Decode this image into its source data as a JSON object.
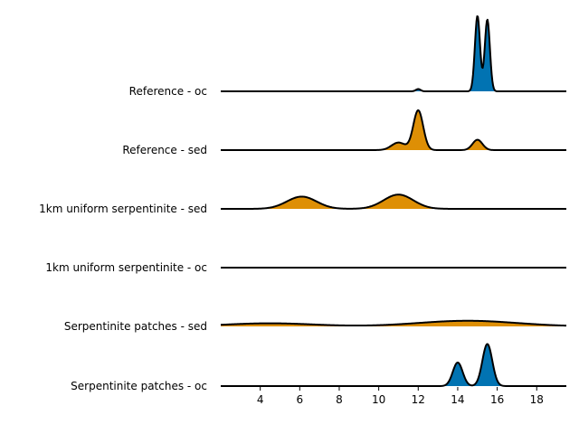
{
  "chart_data": {
    "type": "area",
    "subtype": "ridgeline",
    "title": "",
    "xlabel": "",
    "ylabel": "",
    "xlim": [
      2,
      19.5
    ],
    "xticks": [
      4,
      6,
      8,
      10,
      12,
      14,
      16,
      18
    ],
    "xtick_labels": [
      "4",
      "6",
      "8",
      "10",
      "12",
      "14",
      "16",
      "18"
    ],
    "grid": false,
    "colors": {
      "oc": "#0173b2",
      "sed": "#de8f05",
      "outline": "#000000"
    },
    "series": [
      {
        "name": "Reference - oc",
        "color": "#0173b2",
        "peak_height": 1.0,
        "components": [
          {
            "center": 15.0,
            "width": 0.13,
            "weight": 1.0
          },
          {
            "center": 15.5,
            "width": 0.13,
            "weight": 0.95
          },
          {
            "center": 12.0,
            "width": 0.12,
            "weight": 0.03
          }
        ]
      },
      {
        "name": "Reference - sed",
        "color": "#de8f05",
        "peak_height": 0.53,
        "components": [
          {
            "center": 12.0,
            "width": 0.25,
            "weight": 1.0
          },
          {
            "center": 11.0,
            "width": 0.35,
            "weight": 0.19
          },
          {
            "center": 15.0,
            "width": 0.25,
            "weight": 0.26
          }
        ]
      },
      {
        "name": "1km uniform serpentinite - sed",
        "color": "#de8f05",
        "peak_height": 0.19,
        "components": [
          {
            "center": 6.1,
            "width": 0.75,
            "weight": 0.86
          },
          {
            "center": 11.0,
            "width": 0.75,
            "weight": 1.0
          }
        ]
      },
      {
        "name": "1km uniform serpentinite - oc",
        "color": "#0173b2",
        "peak_height": 0.0,
        "components": []
      },
      {
        "name": "Serpentinite patches - sed",
        "color": "#de8f05",
        "peak_height": 0.075,
        "components": [
          {
            "center": 4.5,
            "width": 2.2,
            "weight": 0.55
          },
          {
            "center": 14.5,
            "width": 2.5,
            "weight": 1.0
          }
        ]
      },
      {
        "name": "Serpentinite patches - oc",
        "color": "#0173b2",
        "peak_height": 0.56,
        "components": [
          {
            "center": 14.0,
            "width": 0.25,
            "weight": 0.56
          },
          {
            "center": 15.5,
            "width": 0.25,
            "weight": 1.0
          }
        ]
      }
    ]
  }
}
